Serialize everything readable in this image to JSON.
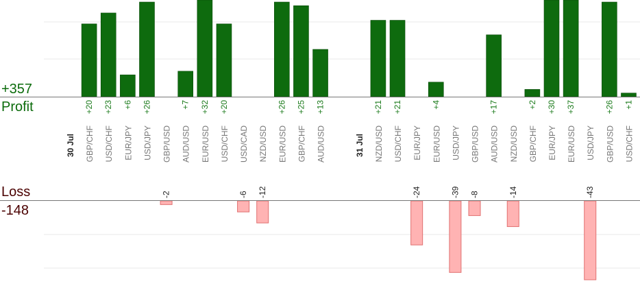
{
  "summary": {
    "profit_total": "+357",
    "profit_label": "Profit",
    "loss_label": "Loss",
    "loss_total": "-148"
  },
  "colors": {
    "profit_bar": "#0e6b0e",
    "profit_bar_edge": "#0a4a0a",
    "loss_bar_fill": "#ffb3b3",
    "loss_bar_edge": "#e07070",
    "profit_text": "#0b6b0b",
    "loss_text": "#4a0000",
    "value_label_profit": "#1a7a1a",
    "value_label_loss": "#222222",
    "axis": "#777777",
    "grid": "#e8e8e8",
    "pair_label": "#777777",
    "date_label": "#222222"
  },
  "chart_data": {
    "type": "bar",
    "profit_ylim": [
      0,
      26
    ],
    "loss_ylim": [
      0,
      43
    ],
    "grid": true,
    "dates": [
      {
        "label": "30 Jul",
        "slot": 0
      },
      {
        "label": "31 Jul",
        "slot": 15
      }
    ],
    "trades": [
      {
        "pair": "GBP/CHF",
        "slot": 1,
        "value": 20,
        "label": "+20"
      },
      {
        "pair": "USD/CHF",
        "slot": 2,
        "value": 23,
        "label": "+23"
      },
      {
        "pair": "EUR/JPY",
        "slot": 3,
        "value": 6,
        "label": "+6"
      },
      {
        "pair": "USD/JPY",
        "slot": 4,
        "value": 26,
        "label": "+26"
      },
      {
        "pair": "GBP/USD",
        "slot": 5,
        "value": -2,
        "label": "-2"
      },
      {
        "pair": "AUD/USD",
        "slot": 6,
        "value": 7,
        "label": "+7"
      },
      {
        "pair": "EUR/USD",
        "slot": 7,
        "value": 32,
        "label": "+32"
      },
      {
        "pair": "USD/CHF",
        "slot": 8,
        "value": 20,
        "label": "+20"
      },
      {
        "pair": "USD/CAD",
        "slot": 9,
        "value": -6,
        "label": "-6"
      },
      {
        "pair": "NZD/USD",
        "slot": 10,
        "value": -12,
        "label": "-12"
      },
      {
        "pair": "EUR/USD",
        "slot": 11,
        "value": 26,
        "label": "+26"
      },
      {
        "pair": "GBP/CHF",
        "slot": 12,
        "value": 25,
        "label": "+25"
      },
      {
        "pair": "AUD/USD",
        "slot": 13,
        "value": 13,
        "label": "+13"
      },
      {
        "pair": "NZD/USD",
        "slot": 16,
        "value": 21,
        "label": "+21"
      },
      {
        "pair": "USD/CHF",
        "slot": 17,
        "value": 21,
        "label": "+21"
      },
      {
        "pair": "EUR/JPY",
        "slot": 18,
        "value": -24,
        "label": "-24"
      },
      {
        "pair": "EUR/USD",
        "slot": 19,
        "value": 4,
        "label": "+4"
      },
      {
        "pair": "USD/JPY",
        "slot": 20,
        "value": -39,
        "label": "-39"
      },
      {
        "pair": "GBP/USD",
        "slot": 21,
        "value": -8,
        "label": "-8"
      },
      {
        "pair": "AUD/USD",
        "slot": 22,
        "value": 17,
        "label": "+17"
      },
      {
        "pair": "NZD/USD",
        "slot": 23,
        "value": -14,
        "label": "-14"
      },
      {
        "pair": "GBP/CHF",
        "slot": 24,
        "value": 2,
        "label": "+2"
      },
      {
        "pair": "EUR/JPY",
        "slot": 25,
        "value": 30,
        "label": "+30"
      },
      {
        "pair": "EUR/USD",
        "slot": 26,
        "value": 37,
        "label": "+37"
      },
      {
        "pair": "USD/JPY",
        "slot": 27,
        "value": -43,
        "label": "-43"
      },
      {
        "pair": "GBP/USD",
        "slot": 28,
        "value": 26,
        "label": "+26"
      },
      {
        "pair": "USD/CHF",
        "slot": 29,
        "value": 1,
        "label": "+1"
      }
    ]
  }
}
